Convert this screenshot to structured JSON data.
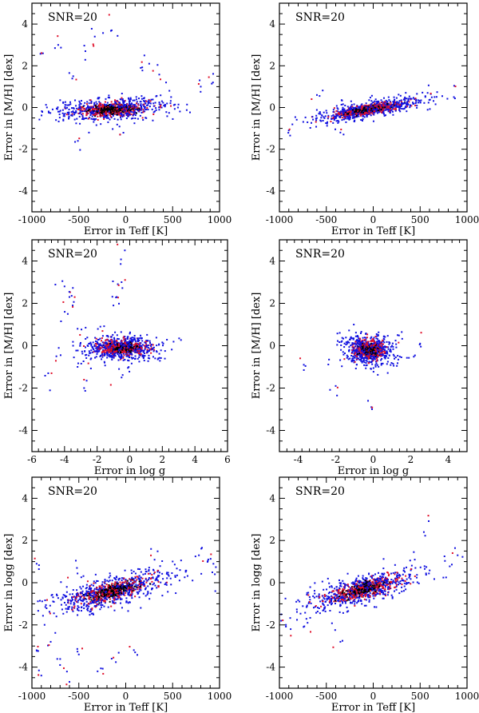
{
  "figure": {
    "point_colors": {
      "outlier": "#1010e0",
      "mid": "#e0102a",
      "core": "#000000"
    }
  },
  "chart_data": [
    {
      "id": "p1",
      "type": "scatter",
      "annotation": "SNR=20",
      "xlabel": "Error in Teff [K]",
      "ylabel": "Error in [M/H] [dex]",
      "xlim": [
        -1000,
        1000
      ],
      "ylim": [
        -5,
        5
      ],
      "xticks": [
        -1000,
        -500,
        0,
        500,
        1000
      ],
      "yticks": [
        -4,
        -2,
        0,
        2,
        4
      ],
      "cluster": {
        "center": [
          -150,
          -0.1
        ],
        "x_spread": 320,
        "y_spread": 0.28,
        "slope": 0.0002
      },
      "outliers": [
        [
          -900,
          2.6
        ],
        [
          -720,
          3.0
        ],
        [
          -430,
          2.7
        ],
        [
          -330,
          3.4
        ],
        [
          -150,
          3.7
        ],
        [
          160,
          1.9
        ],
        [
          250,
          2.1
        ],
        [
          430,
          1.2
        ],
        [
          -560,
          1.5
        ],
        [
          800,
          1.0
        ],
        [
          930,
          1.2
        ],
        [
          -60,
          -1.3
        ],
        [
          -510,
          -1.6
        ]
      ]
    },
    {
      "id": "p2",
      "type": "scatter",
      "annotation": "SNR=20",
      "xlabel": "Error in Teff [K]",
      "ylabel": "Error in [M/H] [dex]",
      "xlim": [
        -1000,
        1000
      ],
      "ylim": [
        -5,
        5
      ],
      "xticks": [
        -1000,
        -500,
        0,
        500,
        1000
      ],
      "yticks": [
        -4,
        -2,
        0,
        2,
        4
      ],
      "cluster": {
        "center": [
          -50,
          -0.1
        ],
        "x_spread": 300,
        "y_spread": 0.2,
        "slope": 0.00075
      },
      "outliers": [
        [
          -600,
          0.6
        ],
        [
          580,
          0.7
        ],
        [
          860,
          0.5
        ],
        [
          -900,
          -1.1
        ],
        [
          -350,
          -1.2
        ]
      ]
    },
    {
      "id": "p3",
      "type": "scatter",
      "annotation": "SNR=20",
      "xlabel": "Error in log g",
      "ylabel": "Error in [M/H] [dex]",
      "xlim": [
        -6,
        6
      ],
      "ylim": [
        -5,
        5
      ],
      "xticks": [
        -6,
        -4,
        -2,
        0,
        2,
        4,
        6
      ],
      "yticks": [
        -4,
        -2,
        0,
        2,
        4
      ],
      "cluster": {
        "center": [
          -0.5,
          -0.1
        ],
        "x_spread": 1.2,
        "y_spread": 0.3,
        "slope": 0.0
      },
      "outliers": [
        [
          -4.0,
          2.8
        ],
        [
          -3.7,
          2.3
        ],
        [
          -3.5,
          1.9
        ],
        [
          -3.8,
          1.5
        ],
        [
          -3.2,
          0.8
        ],
        [
          -0.3,
          4.5
        ],
        [
          -0.5,
          3.0
        ],
        [
          -1.0,
          1.9
        ],
        [
          -1.8,
          0.9
        ],
        [
          -0.8,
          2.3
        ],
        [
          -4.5,
          -0.5
        ],
        [
          -5.0,
          -1.3
        ],
        [
          -2.8,
          -2.0
        ],
        [
          -3.2,
          -1.0
        ],
        [
          -0.5,
          -1.5
        ]
      ]
    },
    {
      "id": "p4",
      "type": "scatter",
      "annotation": "SNR=20",
      "xlabel": "Error in log g",
      "ylabel": "Error in [M/H] [dex]",
      "xlim": [
        -5,
        5
      ],
      "ylim": [
        -5,
        5
      ],
      "xticks": [
        -4,
        -2,
        0,
        2,
        4
      ],
      "yticks": [
        -4,
        -2,
        0,
        2,
        4
      ],
      "cluster": {
        "center": [
          -0.2,
          -0.2
        ],
        "x_spread": 0.7,
        "y_spread": 0.38,
        "slope": 0.0
      },
      "outliers": [
        [
          -3.7,
          -0.9
        ],
        [
          2.5,
          0.1
        ],
        [
          -0.1,
          -2.9
        ],
        [
          -2.0,
          -1.9
        ],
        [
          1.3,
          0.5
        ]
      ]
    },
    {
      "id": "p5",
      "type": "scatter",
      "annotation": "SNR=20",
      "xlabel": "Error in Teff [K]",
      "ylabel": "Error in logg [dex]",
      "xlim": [
        -1000,
        1000
      ],
      "ylim": [
        -5,
        5
      ],
      "xticks": [
        -1000,
        -500,
        0,
        500,
        1000
      ],
      "yticks": [
        -4,
        -2,
        0,
        2,
        4
      ],
      "cluster": {
        "center": [
          -150,
          -0.4
        ],
        "x_spread": 340,
        "y_spread": 0.4,
        "slope": 0.0011
      },
      "outliers": [
        [
          -950,
          -3.2
        ],
        [
          -900,
          -4.4
        ],
        [
          -800,
          -2.8
        ],
        [
          -700,
          -3.9
        ],
        [
          -600,
          -4.7
        ],
        [
          -500,
          -3.4
        ],
        [
          -300,
          -4.2
        ],
        [
          -150,
          -3.6
        ],
        [
          100,
          -3.3
        ],
        [
          780,
          1.3
        ],
        [
          880,
          1.1
        ],
        [
          950,
          0.4
        ],
        [
          -950,
          0.9
        ],
        [
          -520,
          0.7
        ],
        [
          270,
          1.6
        ]
      ]
    },
    {
      "id": "p6",
      "type": "scatter",
      "annotation": "SNR=20",
      "xlabel": "Error in Teff [K]",
      "ylabel": "Error in logg [dex]",
      "xlim": [
        -1000,
        1000
      ],
      "ylim": [
        -5,
        5
      ],
      "xticks": [
        -1000,
        -500,
        0,
        500,
        1000
      ],
      "yticks": [
        -4,
        -2,
        0,
        2,
        4
      ],
      "cluster": {
        "center": [
          -100,
          -0.3
        ],
        "x_spread": 330,
        "y_spread": 0.35,
        "slope": 0.0012
      },
      "outliers": [
        [
          -880,
          -2.2
        ],
        [
          -700,
          -1.9
        ],
        [
          -350,
          -2.8
        ],
        [
          540,
          2.4
        ],
        [
          900,
          1.3
        ],
        [
          -980,
          -1.5
        ]
      ]
    }
  ]
}
